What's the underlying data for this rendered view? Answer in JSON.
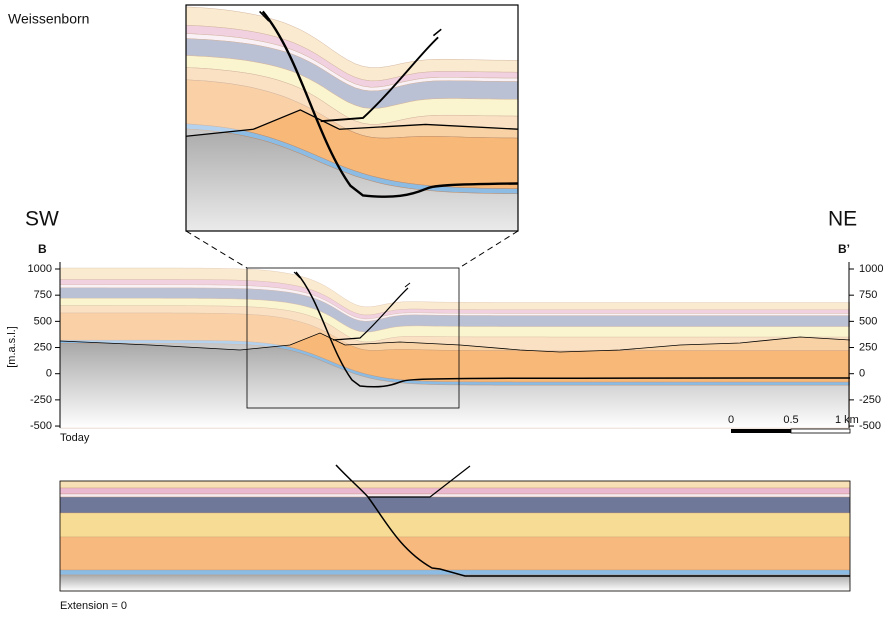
{
  "title": "Weissenborn",
  "labels": {
    "sw": "SW",
    "ne": "NE",
    "b_left": "B",
    "b_right": "B’",
    "y_axis": "[m.a.s.l.]",
    "today": "Today",
    "extension": "Extension = 0"
  },
  "axis": {
    "ticks": [
      1000,
      750,
      500,
      250,
      0,
      -250,
      -500
    ]
  },
  "scale_bar": {
    "labels": [
      "0",
      "0.5",
      "1 km"
    ]
  }
}
